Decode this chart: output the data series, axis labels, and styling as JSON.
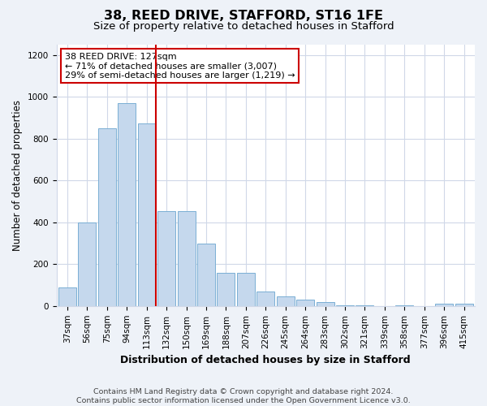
{
  "title": "38, REED DRIVE, STAFFORD, ST16 1FE",
  "subtitle": "Size of property relative to detached houses in Stafford",
  "xlabel": "Distribution of detached houses by size in Stafford",
  "ylabel": "Number of detached properties",
  "categories": [
    "37sqm",
    "56sqm",
    "75sqm",
    "94sqm",
    "113sqm",
    "132sqm",
    "150sqm",
    "169sqm",
    "188sqm",
    "207sqm",
    "226sqm",
    "245sqm",
    "264sqm",
    "283sqm",
    "302sqm",
    "321sqm",
    "339sqm",
    "358sqm",
    "377sqm",
    "396sqm",
    "415sqm"
  ],
  "bar_heights": [
    90,
    400,
    850,
    970,
    875,
    455,
    455,
    300,
    160,
    160,
    70,
    45,
    30,
    20,
    5,
    5,
    0,
    5,
    0,
    10,
    10
  ],
  "bar_color": "#c5d8ed",
  "bar_edge_color": "#7aafd4",
  "vline_color": "#cc0000",
  "annotation_text": "38 REED DRIVE: 127sqm\n← 71% of detached houses are smaller (3,007)\n29% of semi-detached houses are larger (1,219) →",
  "annotation_box_color": "white",
  "annotation_box_edge_color": "#cc0000",
  "ylim": [
    0,
    1250
  ],
  "yticks": [
    0,
    200,
    400,
    600,
    800,
    1000,
    1200
  ],
  "footer_text": "Contains HM Land Registry data © Crown copyright and database right 2024.\nContains public sector information licensed under the Open Government Licence v3.0.",
  "bg_color": "#eef2f8",
  "plot_bg_color": "#ffffff",
  "grid_color": "#d0d8e8",
  "title_fontsize": 11.5,
  "subtitle_fontsize": 9.5,
  "tick_fontsize": 7.5,
  "ylabel_fontsize": 8.5,
  "xlabel_fontsize": 9,
  "footer_fontsize": 6.8,
  "annot_fontsize": 8
}
